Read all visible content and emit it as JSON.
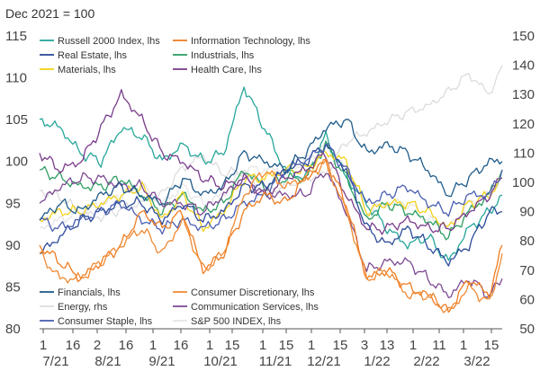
{
  "chart_data": {
    "type": "line",
    "subtitle": "Dec 2021 = 100",
    "left_axis": {
      "ylim": [
        80,
        115
      ],
      "ticks": [
        80,
        85,
        90,
        95,
        100,
        105,
        110,
        115
      ]
    },
    "right_axis": {
      "ylim": [
        50,
        150
      ],
      "ticks": [
        50,
        60,
        70,
        80,
        90,
        100,
        110,
        120,
        130,
        140,
        150
      ]
    },
    "x_axis": {
      "day_labels": [
        "1",
        "16",
        "2",
        "16",
        "1",
        "16",
        "1",
        "15",
        "1",
        "15",
        "1",
        "15",
        "3",
        "13",
        "1",
        "11",
        "1",
        "15"
      ],
      "month_labels": [
        "7/21",
        "8/21",
        "9/21",
        "10/21",
        "11/21",
        "12/21",
        "1/22",
        "2/22",
        "3/22"
      ]
    },
    "legend": [
      {
        "name": "Russell 2000 Index, lhs",
        "color": "#26a69a"
      },
      {
        "name": "Information Technology, lhs",
        "color": "#ef7d22"
      },
      {
        "name": "Real Estate, lhs",
        "color": "#2c4a9a"
      },
      {
        "name": "Industrials, lhs",
        "color": "#2e9e62"
      },
      {
        "name": "Materials, lhs",
        "color": "#f2d21c"
      },
      {
        "name": "Health Care, lhs",
        "color": "#7a3c8c"
      },
      {
        "name": "Financials, lhs",
        "color": "#1f5c8a"
      },
      {
        "name": "Consumer Discretionary, lhs",
        "color": "#ef8a33"
      },
      {
        "name": "Energy, rhs",
        "color": "#dcdcdc"
      },
      {
        "name": "Communication Services, lhs",
        "color": "#7c4a93"
      },
      {
        "name": "Consumer Staple, lhs",
        "color": "#4a5fb0"
      },
      {
        "name": "S&P 500 INDEX, lhs",
        "color": "#e6e6e6"
      }
    ],
    "x_index": [
      0,
      8,
      16,
      24,
      32,
      40,
      48,
      56,
      64,
      72,
      80,
      88,
      96,
      104,
      112,
      120,
      128,
      136,
      144,
      152,
      160,
      168,
      176,
      181
    ],
    "series": [
      {
        "name": "Russell 2000 Index, lhs",
        "axis": "left",
        "values": [
          105,
          104,
          101,
          100,
          104,
          103,
          100,
          102,
          100,
          101,
          109,
          104,
          99,
          98,
          103,
          98,
          95,
          92,
          90,
          91,
          88,
          92,
          94,
          96
        ]
      },
      {
        "name": "Information Technology, lhs",
        "axis": "left",
        "values": [
          90,
          88,
          86,
          88,
          90,
          94,
          92,
          94,
          87,
          89,
          94,
          96,
          95,
          98,
          100,
          95,
          86,
          87,
          85,
          84,
          82,
          86,
          84,
          90
        ]
      },
      {
        "name": "Real Estate, lhs",
        "axis": "left",
        "values": [
          89,
          91,
          93,
          94,
          95,
          95,
          93,
          95,
          93,
          94,
          97,
          97,
          99,
          100,
          102,
          99,
          92,
          90,
          92,
          90,
          88,
          90,
          94,
          94
        ]
      },
      {
        "name": "Industrials, lhs",
        "axis": "left",
        "values": [
          99,
          98,
          97,
          97,
          98,
          96,
          94,
          96,
          94,
          95,
          99,
          97,
          98,
          98,
          102,
          98,
          93,
          95,
          94,
          93,
          91,
          94,
          96,
          99
        ]
      },
      {
        "name": "Materials, lhs",
        "axis": "left",
        "values": [
          93,
          94,
          94,
          95,
          96,
          97,
          93,
          96,
          92,
          94,
          98,
          98,
          99,
          99,
          101,
          100,
          94,
          95,
          95,
          94,
          92,
          95,
          96,
          98
        ]
      },
      {
        "name": "Health Care, lhs",
        "axis": "left",
        "values": [
          101,
          99,
          100,
          104,
          108,
          105,
          101,
          100,
          98,
          97,
          98,
          96,
          98,
          99,
          101,
          96,
          92,
          92,
          93,
          92,
          92,
          94,
          96,
          98
        ]
      },
      {
        "name": "Financials, lhs",
        "axis": "left",
        "values": [
          93,
          95,
          94,
          96,
          97,
          96,
          95,
          98,
          96,
          97,
          101,
          100,
          99,
          101,
          104,
          105,
          101,
          102,
          101,
          99,
          96,
          98,
          100,
          100
        ]
      },
      {
        "name": "Consumer Discretionary, lhs",
        "axis": "left",
        "values": [
          89,
          86,
          86,
          88,
          90,
          92,
          89,
          93,
          87,
          89,
          96,
          99,
          97,
          98,
          100,
          94,
          86,
          87,
          84,
          84,
          82,
          85,
          83,
          89
        ]
      },
      {
        "name": "Energy, rhs",
        "axis": "right",
        "values": [
          97,
          95,
          90,
          88,
          91,
          93,
          96,
          105,
          109,
          103,
          104,
          96,
          99,
          101,
          103,
          114,
          117,
          121,
          124,
          126,
          131,
          137,
          130,
          140
        ]
      },
      {
        "name": "Communication Services, lhs",
        "axis": "left",
        "values": [
          95,
          97,
          98,
          98,
          97,
          97,
          95,
          95,
          94,
          96,
          98,
          96,
          96,
          96,
          99,
          94,
          87,
          88,
          88,
          86,
          84,
          86,
          84,
          86
        ]
      },
      {
        "name": "Consumer Staple, lhs",
        "axis": "left",
        "values": [
          93,
          92,
          93,
          94,
          95,
          93,
          92,
          93,
          92,
          93,
          95,
          96,
          99,
          100,
          102,
          99,
          95,
          96,
          97,
          95,
          94,
          96,
          96,
          99
        ]
      },
      {
        "name": "S&P 500 INDEX, lhs",
        "axis": "left",
        "values": [
          92,
          93,
          94,
          95,
          96,
          97,
          95,
          97,
          95,
          96,
          99,
          99,
          99,
          100,
          102,
          99,
          94,
          95,
          95,
          93,
          92,
          95,
          96,
          98
        ]
      }
    ]
  }
}
